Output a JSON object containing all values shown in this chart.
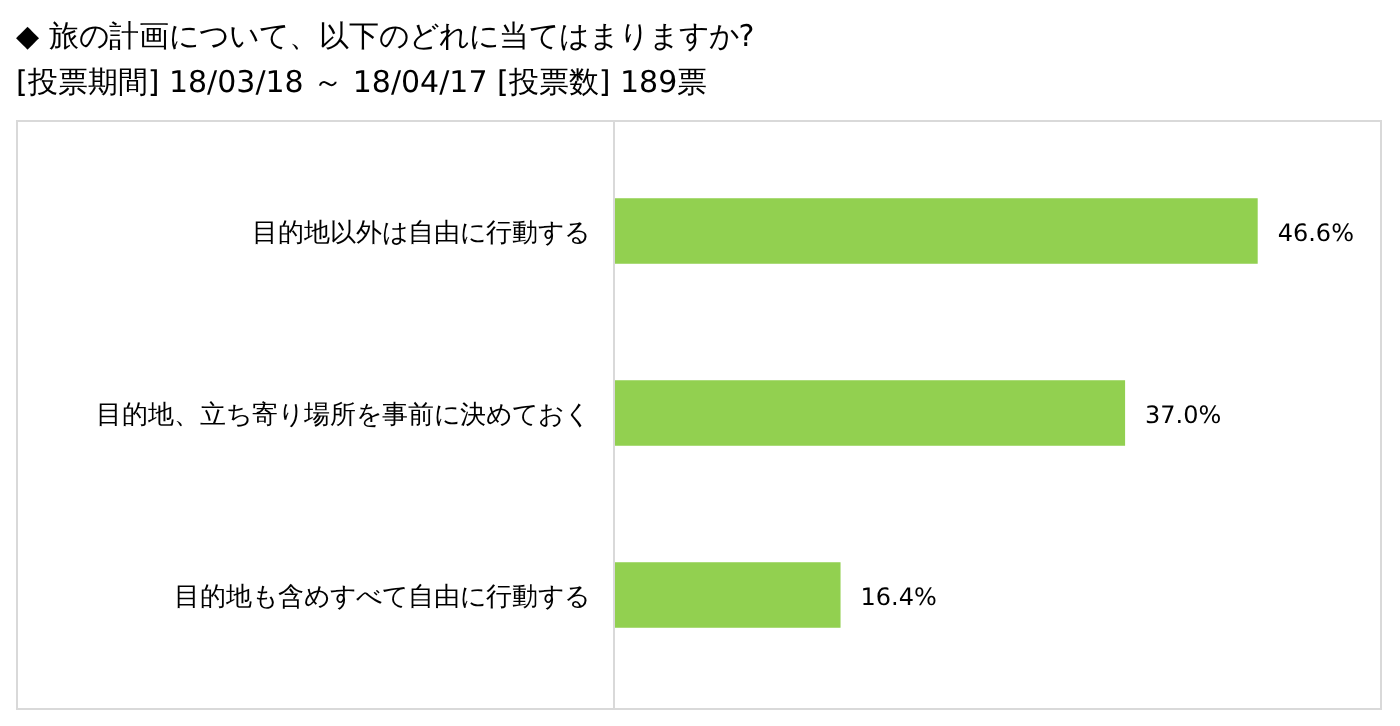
{
  "chart_data": {
    "type": "bar",
    "orientation": "horizontal",
    "title": "◆ 旅の計画について、以下のどれに当てはまりますか?",
    "subtitle": "[投票期間] 18/03/18 ～ 18/04/17 [投票数] 189票",
    "categories": [
      "目的地以外は自由に行動する",
      "目的地、立ち寄り場所を事前に決めておく",
      "目的地も含めすべて自由に行動する"
    ],
    "values": [
      46.6,
      37.0,
      16.4
    ],
    "value_labels": [
      "46.6%",
      "37.0%",
      "16.4%"
    ],
    "color": "#92d050"
  }
}
